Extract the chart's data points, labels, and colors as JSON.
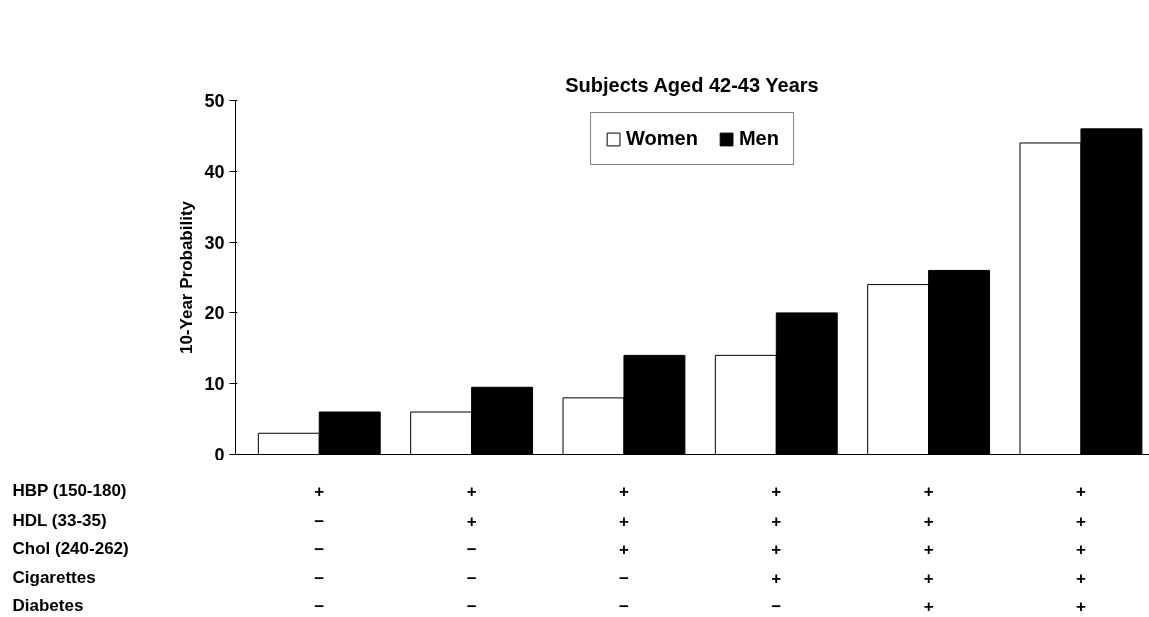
{
  "chart_data": {
    "type": "bar",
    "title": "Subjects Aged 42-43 Years",
    "ylabel": "10-Year Probability",
    "categories": [
      "+\n−\n−\n−\n−",
      "+\n+\n−\n−\n−",
      "+\n+\n+\n−\n−",
      "+\n+\n+\n+\n−",
      "+\n+\n+\n+\n+",
      "+\n+\n+\n+\n+"
    ],
    "series": [
      {
        "name": "Women",
        "color": "#ffffff",
        "values": [
          3,
          6,
          8,
          14,
          24,
          44
        ]
      },
      {
        "name": "Men",
        "color": "#000000",
        "values": [
          6,
          9.5,
          14,
          20,
          26,
          46
        ]
      }
    ],
    "annotations": [
      "HBP (150-180)",
      "HDL (33-35)",
      "Chol (240-262)",
      "Cigarettes",
      "Diabetes"
    ],
    "ylim": [
      0,
      50
    ],
    "yticks": [
      0,
      10,
      20,
      30,
      40,
      50
    ],
    "grid": false,
    "legend": "top"
  }
}
